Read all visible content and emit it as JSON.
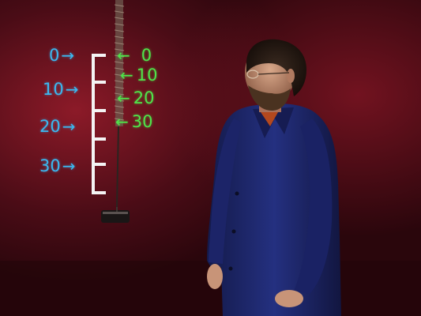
{
  "scene": {
    "subject": "man-in-blue-lab-coat",
    "background_color": "#5a0f18",
    "left_scale": {
      "color": "#3bb8f0",
      "labels": [
        "0",
        "10",
        "20",
        "30"
      ],
      "arrow_glyph": "→"
    },
    "right_scale": {
      "color": "#4fe44a",
      "labels": [
        "0",
        "10",
        "20",
        "30"
      ],
      "arrow_glyph": "←"
    }
  }
}
